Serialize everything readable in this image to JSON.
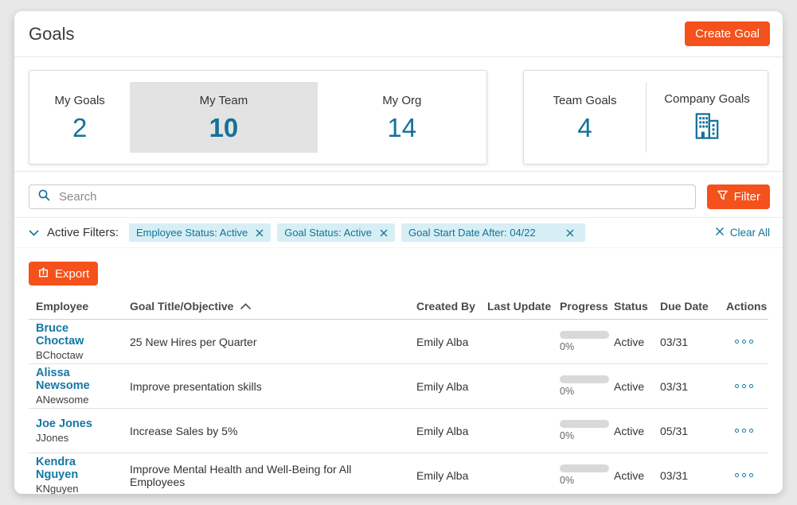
{
  "header": {
    "title": "Goals",
    "create_goal_label": "Create Goal"
  },
  "summary_tabs": {
    "my_goals": {
      "label": "My Goals",
      "count": "2"
    },
    "my_team": {
      "label": "My Team",
      "count": "10",
      "selected": true
    },
    "my_org": {
      "label": "My Org",
      "count": "14"
    },
    "team_goals": {
      "label": "Team Goals",
      "count": "4"
    },
    "company_goals": {
      "label": "Company Goals",
      "icon": "company-building-icon"
    }
  },
  "search": {
    "placeholder": "Search",
    "filter_label": "Filter"
  },
  "filters": {
    "label": "Active Filters:",
    "chips": [
      {
        "label": "Employee Status: Active"
      },
      {
        "label": "Goal Status: Active"
      },
      {
        "label": "Goal Start Date After: 04/22"
      }
    ],
    "clear_all_label": "Clear All"
  },
  "toolbar": {
    "export_label": "Export"
  },
  "table": {
    "headers": {
      "employee": "Employee",
      "goal": "Goal Title/Objective",
      "created_by": "Created By",
      "last_update": "Last Update",
      "progress": "Progress",
      "status": "Status",
      "due_date": "Due Date",
      "actions": "Actions"
    },
    "sorted_by": "Goal Title/Objective",
    "sort_direction": "ascending",
    "rows": [
      {
        "employee_name": "Bruce Choctaw",
        "employee_username": "BChoctaw",
        "goal_title": "25 New Hires per Quarter",
        "created_by": "Emily Alba",
        "last_update": "",
        "progress_label": "0%",
        "progress_percent": 0,
        "status": "Active",
        "due_date": "03/31"
      },
      {
        "employee_name": "Alissa Newsome",
        "employee_username": "ANewsome",
        "goal_title": "Improve presentation skills",
        "created_by": "Emily Alba",
        "last_update": "",
        "progress_label": "0%",
        "progress_percent": 0,
        "status": "Active",
        "due_date": "03/31"
      },
      {
        "employee_name": "Joe Jones",
        "employee_username": "JJones",
        "goal_title": "Increase Sales by 5%",
        "created_by": "Emily Alba",
        "last_update": "",
        "progress_label": "0%",
        "progress_percent": 0,
        "status": "Active",
        "due_date": "05/31"
      },
      {
        "employee_name": "Kendra Nguyen",
        "employee_username": "KNguyen",
        "goal_title": "Improve Mental Health and Well-Being for All Employees",
        "created_by": "Emily Alba",
        "last_update": "",
        "progress_label": "0%",
        "progress_percent": 0,
        "status": "Active",
        "due_date": "03/31"
      }
    ]
  },
  "colors": {
    "accent_orange": "#F4511C",
    "accent_teal": "#14719A",
    "chip_background": "#D8EEF5",
    "chip_text": "#0F7596",
    "selected_tab_background": "#E3E3E3"
  }
}
